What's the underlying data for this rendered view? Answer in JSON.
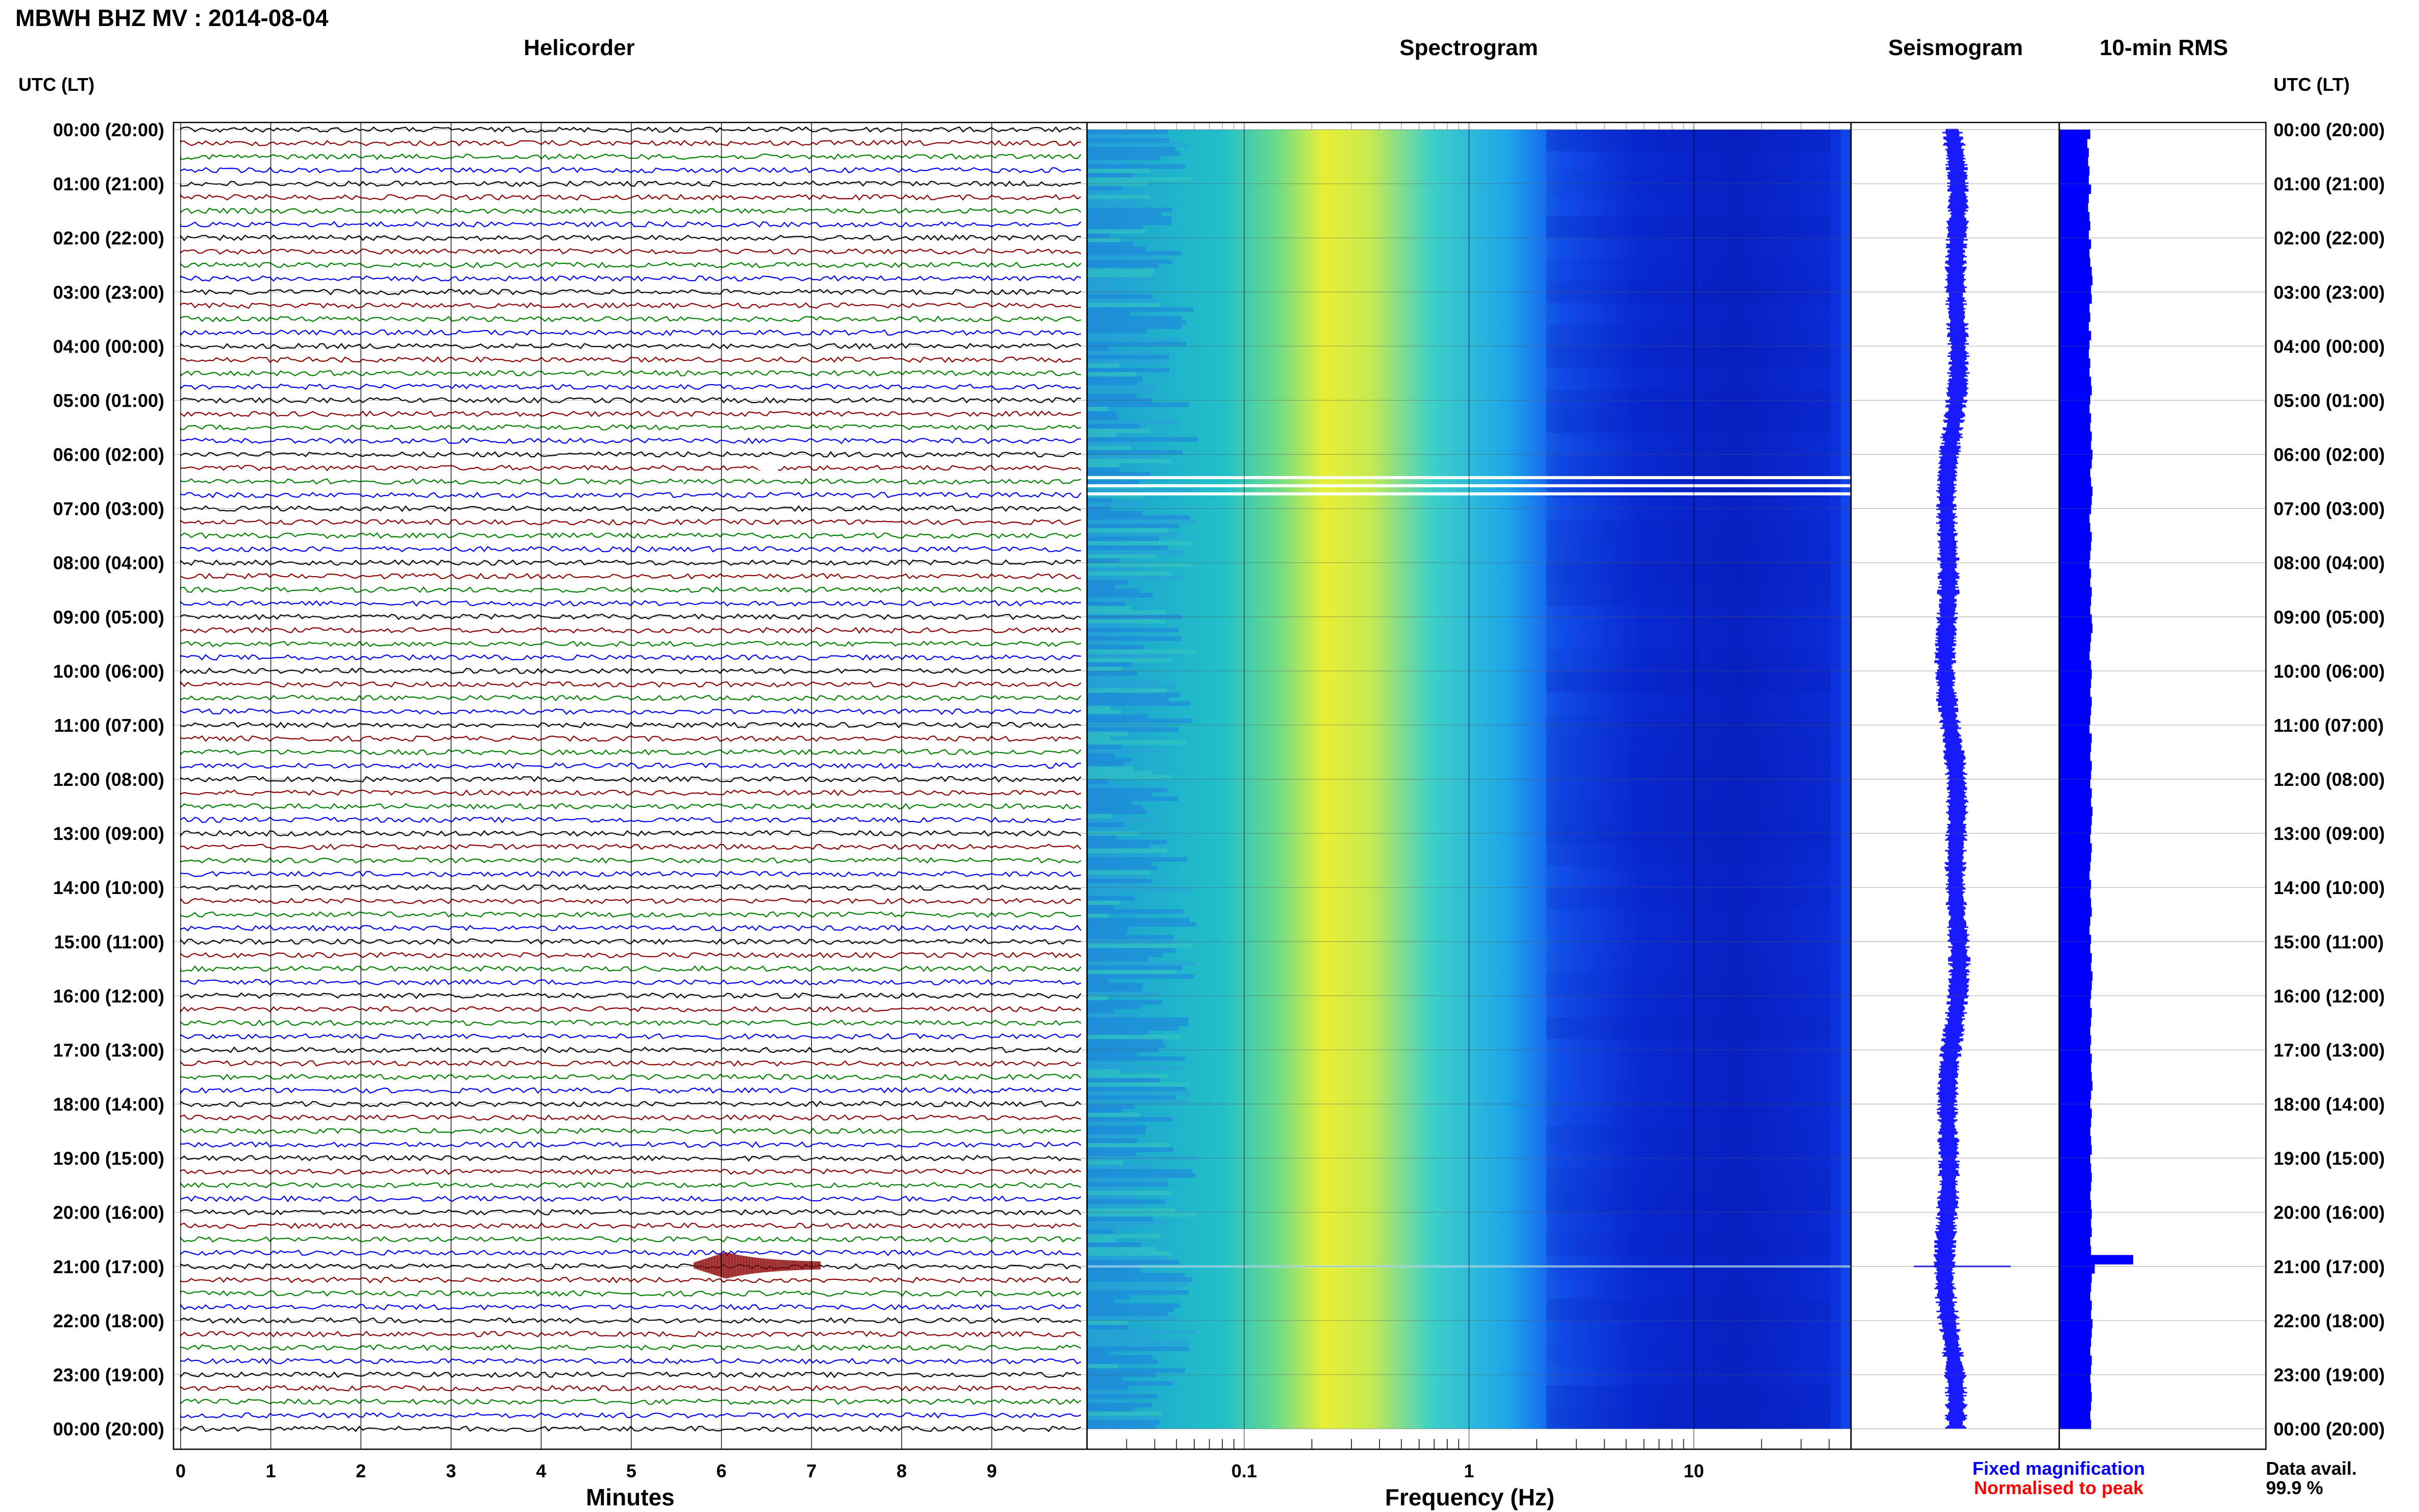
{
  "page_title": "MBWH BHZ MV : 2014-08-04",
  "panels": {
    "helicorder": "Helicorder",
    "spectrogram": "Spectrogram",
    "seismogram": "Seismogram",
    "rms": "10-min RMS"
  },
  "axis": {
    "time_header_left": "UTC (LT)",
    "time_header_right": "UTC (LT)",
    "minutes_label": "Minutes",
    "frequency_label": "Frequency (Hz)"
  },
  "legend": {
    "fixed": "Fixed magnification",
    "normalised": "Normalised to peak",
    "fixed_color": "#0000ff",
    "normalised_color": "#ff0000"
  },
  "availability": {
    "label": "Data avail.",
    "value": "99.9 %"
  },
  "chart_data": {
    "type": "heatmap",
    "time_ticks": [
      "00:00 (20:00)",
      "01:00 (21:00)",
      "02:00 (22:00)",
      "03:00 (23:00)",
      "04:00 (00:00)",
      "05:00 (01:00)",
      "06:00 (02:00)",
      "07:00 (03:00)",
      "08:00 (04:00)",
      "09:00 (05:00)",
      "10:00 (06:00)",
      "11:00 (07:00)",
      "12:00 (08:00)",
      "13:00 (09:00)",
      "14:00 (10:00)",
      "15:00 (11:00)",
      "16:00 (12:00)",
      "17:00 (13:00)",
      "18:00 (14:00)",
      "19:00 (15:00)",
      "20:00 (16:00)",
      "21:00 (17:00)",
      "22:00 (18:00)",
      "23:00 (19:00)",
      "00:00 (20:00)"
    ],
    "minute_ticks": [
      "0",
      "1",
      "2",
      "3",
      "4",
      "5",
      "6",
      "7",
      "8",
      "9"
    ],
    "minute_range": [
      0,
      10
    ],
    "frequency_ticks": [
      "0.1",
      "1",
      "10"
    ],
    "frequency_range": [
      0.02,
      50
    ],
    "frequency_scale": "log",
    "helicorder_trace_colors": [
      "#000000",
      "#8b0000",
      "#008000",
      "#0000ff"
    ],
    "events": [
      {
        "label": "event",
        "hour": 21.0,
        "minute_start": 5.7,
        "minute_end": 7.1
      }
    ],
    "data_gaps_hours": [
      6.4,
      6.55,
      6.7
    ],
    "rms_fraction_of_max": [
      0.42,
      0.38,
      0.4,
      0.39,
      0.41,
      0.4,
      0.43,
      0.4,
      0.39,
      0.41,
      0.42,
      0.4,
      0.43,
      0.41,
      0.42,
      0.44,
      0.45,
      0.43,
      0.44,
      0.41,
      0.42,
      0.4,
      0.43,
      0.41,
      0.4,
      0.42,
      0.41,
      0.43,
      0.44,
      0.42,
      0.41,
      0.43,
      0.42,
      0.44,
      0.43,
      0.45,
      0.44,
      0.42,
      0.43,
      0.45,
      0.44,
      0.43,
      0.41,
      0.42,
      0.44,
      0.43,
      0.42,
      0.41,
      0.43,
      0.42,
      0.44,
      0.43,
      0.42,
      0.44,
      0.45,
      0.43,
      0.42,
      0.41,
      0.43,
      0.44,
      0.43,
      0.42,
      0.44,
      0.43,
      0.42,
      0.41,
      0.44,
      0.43,
      0.42,
      0.44,
      0.43,
      0.42,
      0.44,
      0.43,
      0.45,
      0.44,
      0.43,
      0.42,
      0.44,
      0.43,
      0.42,
      0.41,
      0.43,
      0.42,
      0.43,
      0.44,
      0.42,
      0.41,
      0.43,
      0.42,
      0.44,
      0.43,
      0.45,
      0.44,
      0.43,
      0.42,
      0.44,
      0.43,
      0.42,
      0.43,
      0.42,
      0.44,
      0.43,
      0.44,
      0.45,
      0.43,
      0.42,
      0.44,
      0.43,
      0.42,
      0.43,
      0.44,
      0.42,
      0.43,
      0.44,
      0.43,
      0.42,
      0.43,
      0.44,
      0.43,
      0.44,
      0.42,
      0.43,
      1.0,
      0.48,
      0.44,
      0.43,
      0.42,
      0.44,
      0.43,
      0.45,
      0.44,
      0.43,
      0.42,
      0.44,
      0.43,
      0.42,
      0.43,
      0.44,
      0.43,
      0.42,
      0.43
    ]
  }
}
